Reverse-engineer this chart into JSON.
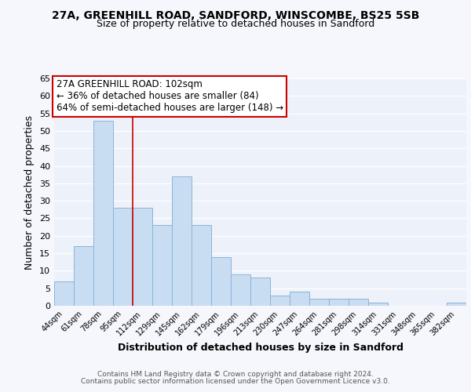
{
  "title1": "27A, GREENHILL ROAD, SANDFORD, WINSCOMBE, BS25 5SB",
  "title2": "Size of property relative to detached houses in Sandford",
  "xlabel": "Distribution of detached houses by size in Sandford",
  "ylabel": "Number of detached properties",
  "bar_labels": [
    "44sqm",
    "61sqm",
    "78sqm",
    "95sqm",
    "112sqm",
    "129sqm",
    "145sqm",
    "162sqm",
    "179sqm",
    "196sqm",
    "213sqm",
    "230sqm",
    "247sqm",
    "264sqm",
    "281sqm",
    "298sqm",
    "314sqm",
    "331sqm",
    "348sqm",
    "365sqm",
    "382sqm"
  ],
  "bar_values": [
    7,
    17,
    53,
    28,
    28,
    23,
    37,
    23,
    14,
    9,
    8,
    3,
    4,
    2,
    2,
    2,
    1,
    0,
    0,
    0,
    1
  ],
  "bar_color": "#c9ddf2",
  "bar_edge_color": "#8ab4d8",
  "vline_x": 3.5,
  "vline_color": "#cc0000",
  "annotation_title": "27A GREENHILL ROAD: 102sqm",
  "annotation_line1": "← 36% of detached houses are smaller (84)",
  "annotation_line2": "64% of semi-detached houses are larger (148) →",
  "annotation_box_facecolor": "#ffffff",
  "annotation_box_edgecolor": "#cc0000",
  "ylim": [
    0,
    65
  ],
  "yticks": [
    0,
    5,
    10,
    15,
    20,
    25,
    30,
    35,
    40,
    45,
    50,
    55,
    60,
    65
  ],
  "fig_bg_color": "#f5f7fc",
  "plot_bg_color": "#edf1f9",
  "grid_color": "#ffffff",
  "footer1": "Contains HM Land Registry data © Crown copyright and database right 2024.",
  "footer2": "Contains public sector information licensed under the Open Government Licence v3.0."
}
